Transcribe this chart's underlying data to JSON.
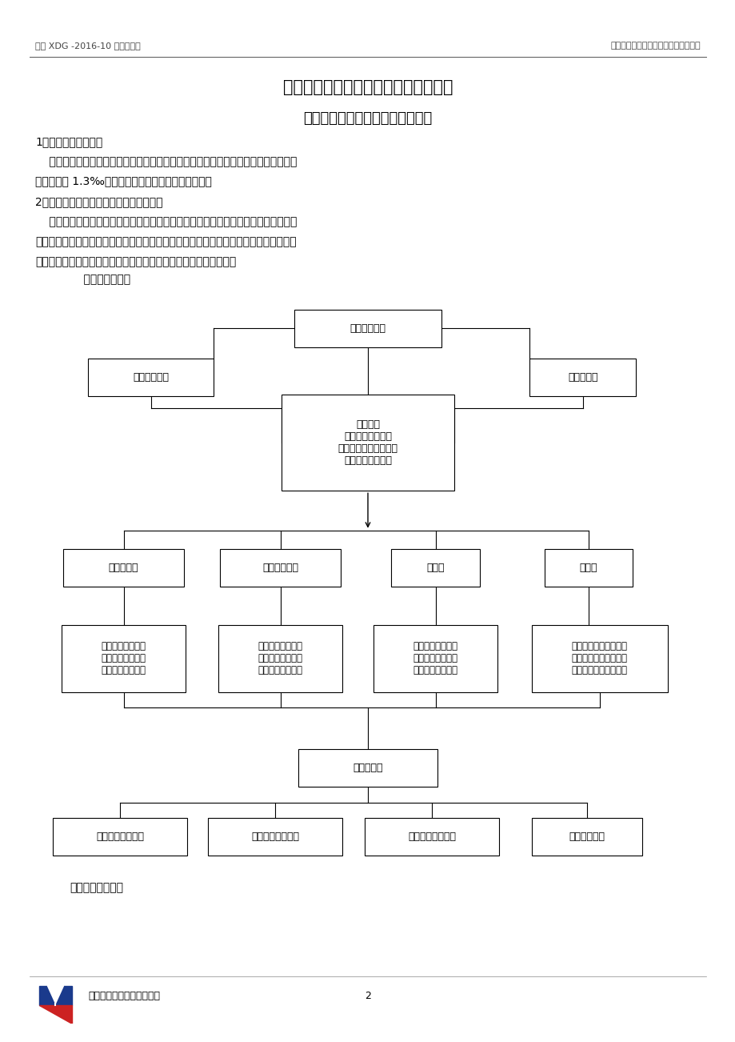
{
  "header_left": "无锡 XDG -2016-10 号地块工程",
  "header_right": "施工现场安全管理网络及安全技术措施",
  "main_title": "施工现场安全管理网络及安全技术措施",
  "section_title": "一、安全生产管理目标及管理体系",
  "para1_title": "1、安全生产管理目标",
  "para1_line1": "    在本工程施工的全过程中，安全生产管理目标，必须保证无重大伤亡事故，一般事故",
  "para1_line2": "频率控制在 1.3‰以内，杜绝重伤及伤亡事故的发生。",
  "para2_title": "2、安全生产管理保证体系及安全管理网络",
  "para2_line1": "    确保安全生产，管理组织管理体系必须健全，切实加强施工过程中安全生产的领导，",
  "para2_line2": "在政府及职能部门的领导监督下，建立以项目经理为首的安全生产组织机构，使整个施工",
  "para2_line3": "过程形成从上到下，人人负责，层层落实的安全生产管理保证体系：",
  "anquan_baozheng": "    安全保证体系：",
  "anquan_guanli": "安全管理网络图：",
  "footer_company": "南通华新建工集团有限公司",
  "footer_page": "2",
  "bg_color": "#ffffff",
  "text_color": "#000000"
}
